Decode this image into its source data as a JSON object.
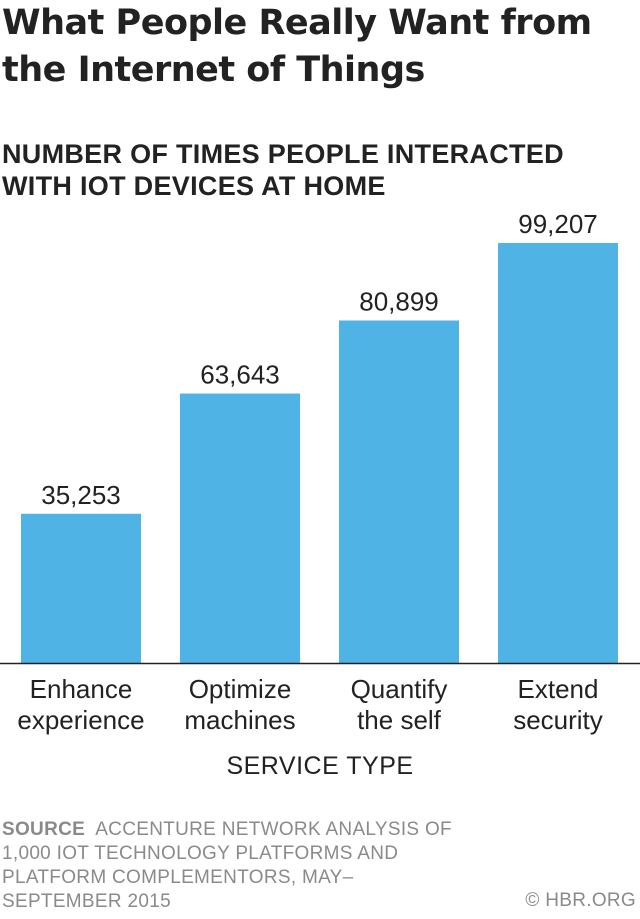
{
  "title": "What People Really Want from the Internet of Things",
  "subtitle": "NUMBER OF TIMES PEOPLE INTERACTED WITH IOT DEVICES AT HOME",
  "source_label": "SOURCE",
  "source_text": "ACCENTURE NETWORK ANALYSIS OF 1,000 IOT TECHNOLOGY PLATFORMS AND PLATFORM COMPLEMENTORS, MAY–SEPTEMBER 2015",
  "credit": "© HBR.ORG",
  "colors": {
    "bar": "#4fb3e6",
    "axis": "#222222",
    "text": "#222222",
    "source": "#8a8a8a"
  },
  "chart_data": {
    "type": "bar",
    "title": "What People Really Want from the Internet of Things",
    "subtitle": "NUMBER OF TIMES PEOPLE INTERACTED WITH IOT DEVICES AT HOME",
    "xlabel": "SERVICE TYPE",
    "ylabel": "",
    "categories": [
      [
        "Enhance",
        "experience"
      ],
      [
        "Optimize",
        "machines"
      ],
      [
        "Quantify",
        "the self"
      ],
      [
        "Extend",
        "security"
      ]
    ],
    "values": [
      35253,
      63643,
      80899,
      99207
    ],
    "value_labels": [
      "35,253",
      "63,643",
      "80,899",
      "99,207"
    ],
    "ylim": [
      0,
      100000
    ],
    "grid": false,
    "legend": "none"
  }
}
